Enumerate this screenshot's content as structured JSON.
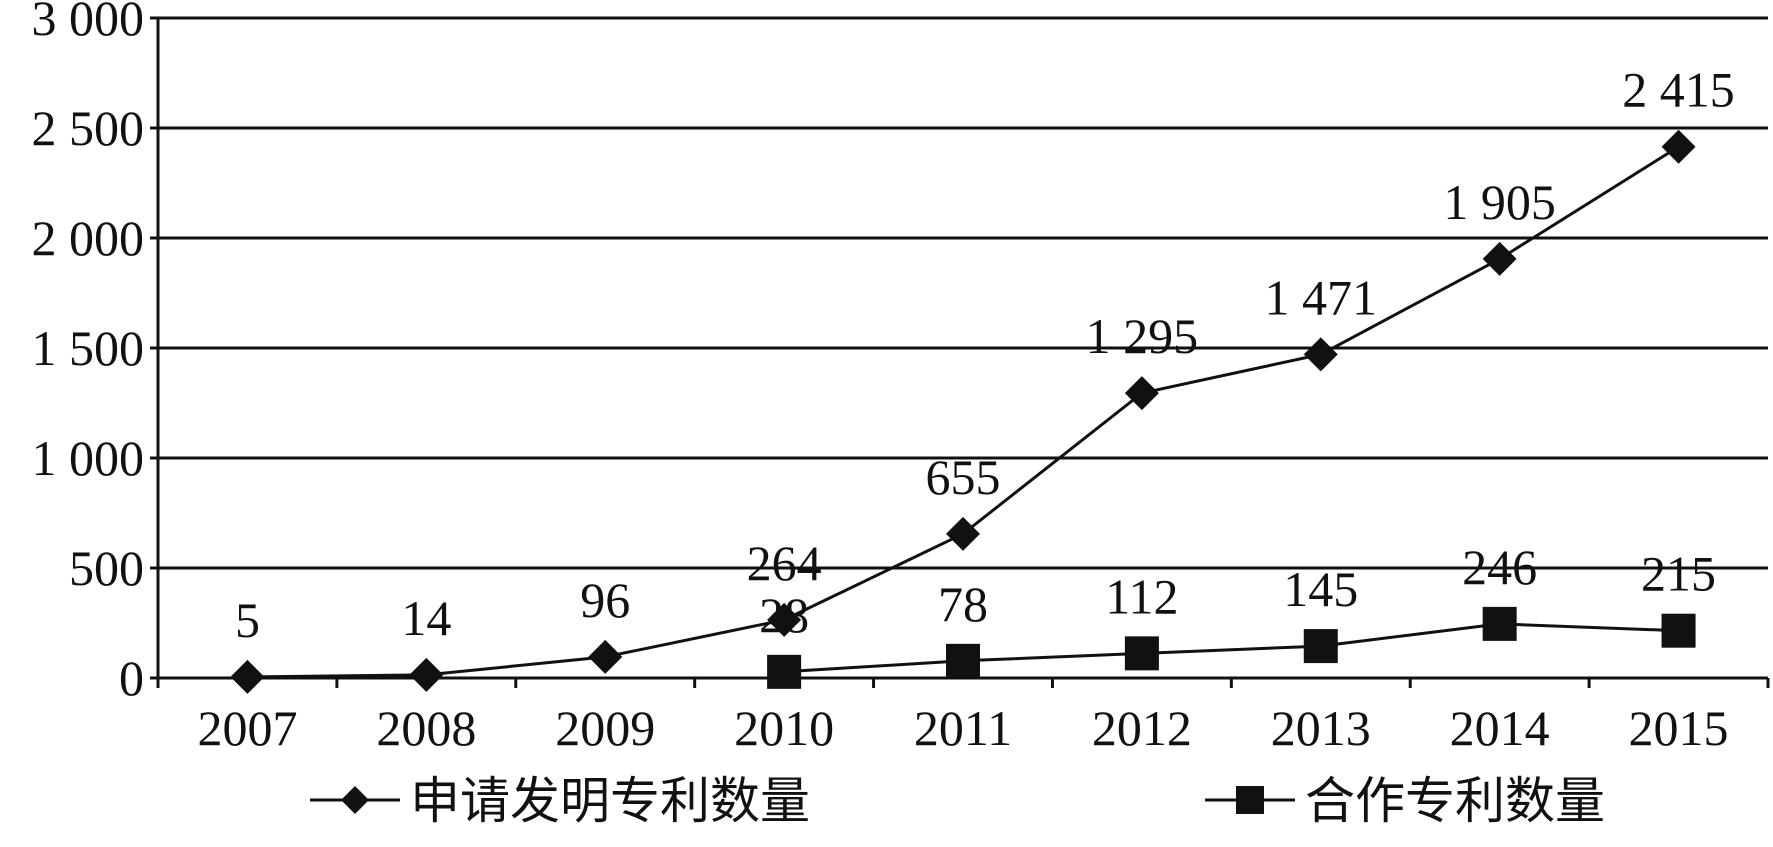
{
  "chart_data": {
    "type": "line",
    "title": "",
    "xlabel": "",
    "ylabel": "",
    "categories": [
      "2007",
      "2008",
      "2009",
      "2010",
      "2011",
      "2012",
      "2013",
      "2014",
      "2015"
    ],
    "ylim": [
      0,
      3000
    ],
    "y_ticks": [
      0,
      500,
      1000,
      1500,
      2000,
      2500,
      3000
    ],
    "y_tick_labels": [
      "0",
      "500",
      "1 000",
      "1 500",
      "2 000",
      "2 500",
      "3 000"
    ],
    "grid": true,
    "legend_position": "bottom",
    "series": [
      {
        "name": "申请发明专利数量",
        "marker": "diamond",
        "color": "#111111",
        "values": [
          5,
          14,
          96,
          264,
          655,
          1295,
          1471,
          1905,
          2415
        ],
        "labels": [
          "5",
          "14",
          "96",
          "264",
          "655",
          "1 295",
          "1 471",
          "1 905",
          "2 415"
        ]
      },
      {
        "name": "合作专利数量",
        "marker": "square",
        "color": "#111111",
        "values": [
          null,
          null,
          null,
          28,
          78,
          112,
          145,
          246,
          215
        ],
        "labels": [
          null,
          null,
          null,
          "28",
          "78",
          "112",
          "145",
          "246",
          "215"
        ]
      }
    ]
  }
}
